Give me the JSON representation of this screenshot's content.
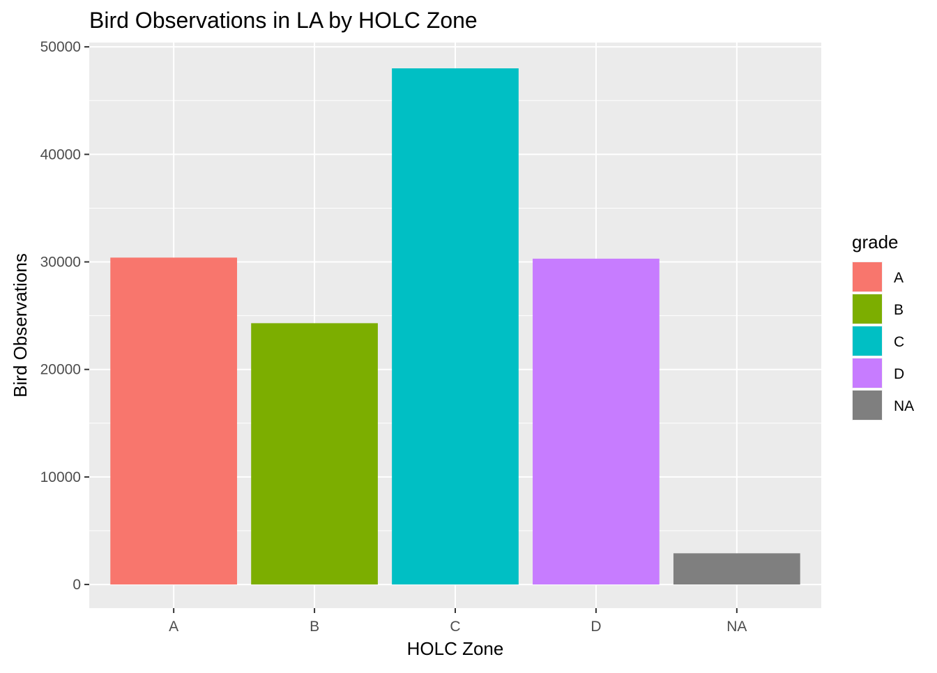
{
  "chart_data": {
    "type": "bar",
    "title": "Bird Observations in LA by HOLC Zone",
    "xlabel": "HOLC Zone",
    "ylabel": "Bird Observations",
    "categories": [
      "A",
      "B",
      "C",
      "D",
      "NA"
    ],
    "values": [
      30400,
      24300,
      48000,
      30300,
      2900
    ],
    "ylim": [
      -2200,
      50400
    ],
    "yticks": [
      0,
      10000,
      20000,
      30000,
      40000,
      50000
    ],
    "ytick_labels": [
      "0",
      "10000",
      "20000",
      "30000",
      "40000",
      "50000"
    ],
    "colors": [
      "#F8766D",
      "#7CAE00",
      "#00BFC4",
      "#C77CFF",
      "#7F7F7F"
    ],
    "legend": {
      "title": "grade",
      "labels": [
        "A",
        "B",
        "C",
        "D",
        "NA"
      ],
      "placement": "right"
    },
    "grid": true,
    "panel_background": "#EBEBEB",
    "grid_color": "#FFFFFF"
  }
}
